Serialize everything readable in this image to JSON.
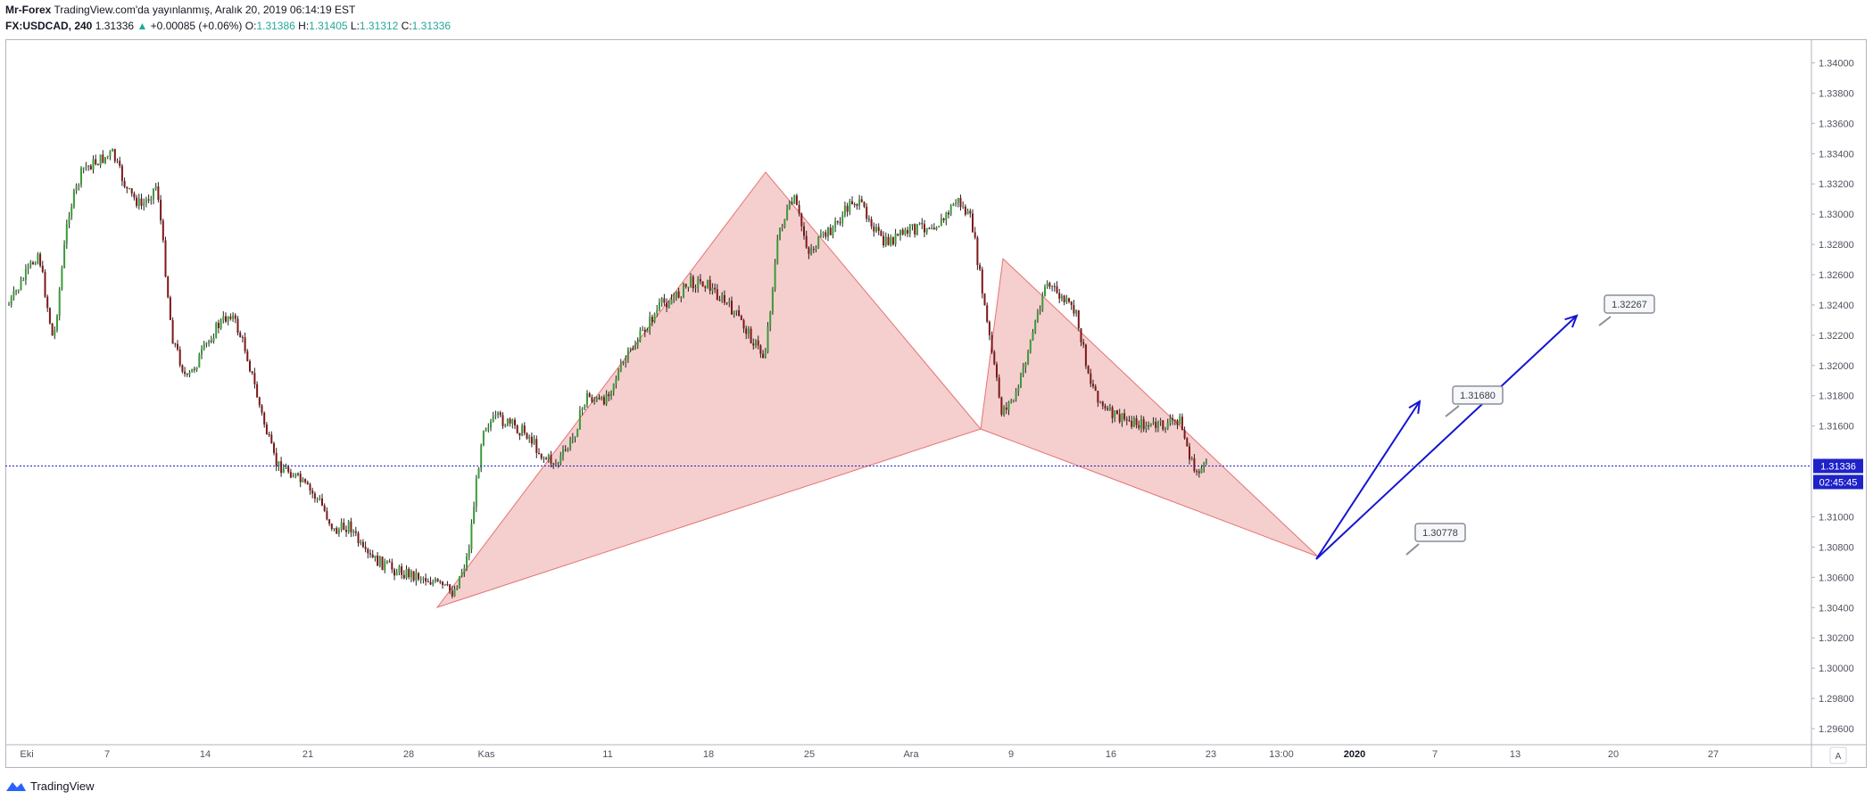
{
  "header": {
    "publisher": "Mr-Forex",
    "published_line": "TradingView.com'da yayınlanmış, Aralık 20, 2019 06:14:19 EST",
    "symbol": "FX:USDCAD, 240",
    "last": "1.31336",
    "change_arrow": "▲",
    "change": "+0.00085 (+0.06%)",
    "o_label": "O:",
    "o_value": "1.31386",
    "h_label": "H:",
    "h_value": "1.31405",
    "l_label": "L:",
    "l_value": "1.31312",
    "c_label": "C:",
    "c_value": "1.31336"
  },
  "footer": {
    "brand": "TradingView",
    "logo_icon": "tradingview-logo-icon"
  },
  "axis": {
    "price_labels": [
      "1.34000",
      "1.33800",
      "1.33600",
      "1.33400",
      "1.33200",
      "1.33000",
      "1.32800",
      "1.32600",
      "1.32400",
      "1.32200",
      "1.32000",
      "1.31800",
      "1.31600",
      "1.31000",
      "1.30800",
      "1.30600",
      "1.30400",
      "1.30200",
      "1.30000",
      "1.29800",
      "1.29600"
    ],
    "current_price_tag": "1.31336",
    "countdown_tag": "02:45:45",
    "time_labels": [
      "Eki",
      "7",
      "14",
      "21",
      "28",
      "Kas",
      "11",
      "18",
      "25",
      "Ara",
      "9",
      "16",
      "23",
      "13:00",
      "2020",
      "7",
      "13",
      "20",
      "27"
    ],
    "auto_button": "A"
  },
  "annotations": {
    "labels": [
      "1.31680",
      "1.32267",
      "1.30778"
    ]
  },
  "colors": {
    "bull": "#26a69a",
    "bull_candle": "#3a9b3a",
    "bear_candle": "#7d1717",
    "pattern_fill": "#f3c5c5",
    "pattern_stroke": "#e57373",
    "arrow": "#1414d2",
    "price_line": "#1e22c8",
    "tag_bg": "#1e22c8"
  },
  "chart_data": {
    "type": "candlestick",
    "symbol": "FX:USDCAD",
    "interval": "240",
    "ylim": [
      1.295,
      1.3415
    ],
    "current_price": 1.31336,
    "pattern_points": [
      {
        "date": "2019-10-30",
        "price": 1.3043
      },
      {
        "date": "2019-11-21",
        "price": 1.3327
      },
      {
        "date": "2019-12-06",
        "price": 1.3159
      },
      {
        "date": "2019-12-09",
        "price": 1.327
      },
      {
        "date": "2019-12-27",
        "price": 1.3077
      }
    ],
    "projection_arrows": [
      {
        "from": {
          "date": "2019-12-29",
          "price": 1.3075
        },
        "to": {
          "date": "2020-01-04",
          "price": 1.317
        }
      },
      {
        "from": {
          "date": "2019-12-29",
          "price": 1.3075
        },
        "to": {
          "date": "2020-01-15",
          "price": 1.3229
        }
      }
    ],
    "callouts": [
      1.3168,
      1.32267,
      1.30778
    ],
    "close_path": [
      {
        "date": "2019-09-30",
        "price": 1.324
      },
      {
        "date": "2019-10-02",
        "price": 1.3275
      },
      {
        "date": "2019-10-03",
        "price": 1.3215
      },
      {
        "date": "2019-10-04",
        "price": 1.33
      },
      {
        "date": "2019-10-05",
        "price": 1.333
      },
      {
        "date": "2019-10-07",
        "price": 1.334
      },
      {
        "date": "2019-10-08",
        "price": 1.3315
      },
      {
        "date": "2019-10-09",
        "price": 1.3305
      },
      {
        "date": "2019-10-10",
        "price": 1.332
      },
      {
        "date": "2019-10-11",
        "price": 1.322
      },
      {
        "date": "2019-10-12",
        "price": 1.319
      },
      {
        "date": "2019-10-14",
        "price": 1.3225
      },
      {
        "date": "2019-10-15",
        "price": 1.3235
      },
      {
        "date": "2019-10-16",
        "price": 1.321
      },
      {
        "date": "2019-10-17",
        "price": 1.317
      },
      {
        "date": "2019-10-18",
        "price": 1.3135
      },
      {
        "date": "2019-10-19",
        "price": 1.313
      },
      {
        "date": "2019-10-21",
        "price": 1.311
      },
      {
        "date": "2019-10-22",
        "price": 1.309
      },
      {
        "date": "2019-10-23",
        "price": 1.3095
      },
      {
        "date": "2019-10-24",
        "price": 1.3075
      },
      {
        "date": "2019-10-25",
        "price": 1.307
      },
      {
        "date": "2019-10-26",
        "price": 1.3065
      },
      {
        "date": "2019-10-28",
        "price": 1.306
      },
      {
        "date": "2019-10-29",
        "price": 1.3055
      },
      {
        "date": "2019-10-30",
        "price": 1.305
      },
      {
        "date": "2019-10-31",
        "price": 1.3075
      },
      {
        "date": "2019-11-01",
        "price": 1.316
      },
      {
        "date": "2019-11-02",
        "price": 1.3165
      },
      {
        "date": "2019-11-04",
        "price": 1.3155
      },
      {
        "date": "2019-11-05",
        "price": 1.314
      },
      {
        "date": "2019-11-06",
        "price": 1.3135
      },
      {
        "date": "2019-11-07",
        "price": 1.315
      },
      {
        "date": "2019-11-08",
        "price": 1.318
      },
      {
        "date": "2019-11-09",
        "price": 1.3175
      },
      {
        "date": "2019-11-11",
        "price": 1.321
      },
      {
        "date": "2019-11-12",
        "price": 1.3225
      },
      {
        "date": "2019-11-13",
        "price": 1.324
      },
      {
        "date": "2019-11-14",
        "price": 1.3245
      },
      {
        "date": "2019-11-15",
        "price": 1.3255
      },
      {
        "date": "2019-11-16",
        "price": 1.3255
      },
      {
        "date": "2019-11-18",
        "price": 1.3235
      },
      {
        "date": "2019-11-19",
        "price": 1.322
      },
      {
        "date": "2019-11-20",
        "price": 1.3205
      },
      {
        "date": "2019-11-21",
        "price": 1.329
      },
      {
        "date": "2019-11-22",
        "price": 1.331
      },
      {
        "date": "2019-11-23",
        "price": 1.3275
      },
      {
        "date": "2019-11-25",
        "price": 1.3295
      },
      {
        "date": "2019-11-26",
        "price": 1.331
      },
      {
        "date": "2019-11-27",
        "price": 1.33
      },
      {
        "date": "2019-11-28",
        "price": 1.328
      },
      {
        "date": "2019-11-29",
        "price": 1.3285
      },
      {
        "date": "2019-11-30",
        "price": 1.329
      },
      {
        "date": "2019-12-02",
        "price": 1.3295
      },
      {
        "date": "2019-12-03",
        "price": 1.331
      },
      {
        "date": "2019-12-04",
        "price": 1.3295
      },
      {
        "date": "2019-12-05",
        "price": 1.323
      },
      {
        "date": "2019-12-06",
        "price": 1.317
      },
      {
        "date": "2019-12-07",
        "price": 1.318
      },
      {
        "date": "2019-12-09",
        "price": 1.3255
      },
      {
        "date": "2019-12-10",
        "price": 1.3245
      },
      {
        "date": "2019-12-11",
        "price": 1.3235
      },
      {
        "date": "2019-12-12",
        "price": 1.319
      },
      {
        "date": "2019-12-13",
        "price": 1.317
      },
      {
        "date": "2019-12-14",
        "price": 1.3165
      },
      {
        "date": "2019-12-16",
        "price": 1.316
      },
      {
        "date": "2019-12-17",
        "price": 1.316
      },
      {
        "date": "2019-12-18",
        "price": 1.3165
      },
      {
        "date": "2019-12-19",
        "price": 1.313
      },
      {
        "date": "2019-12-20",
        "price": 1.3134
      }
    ]
  }
}
